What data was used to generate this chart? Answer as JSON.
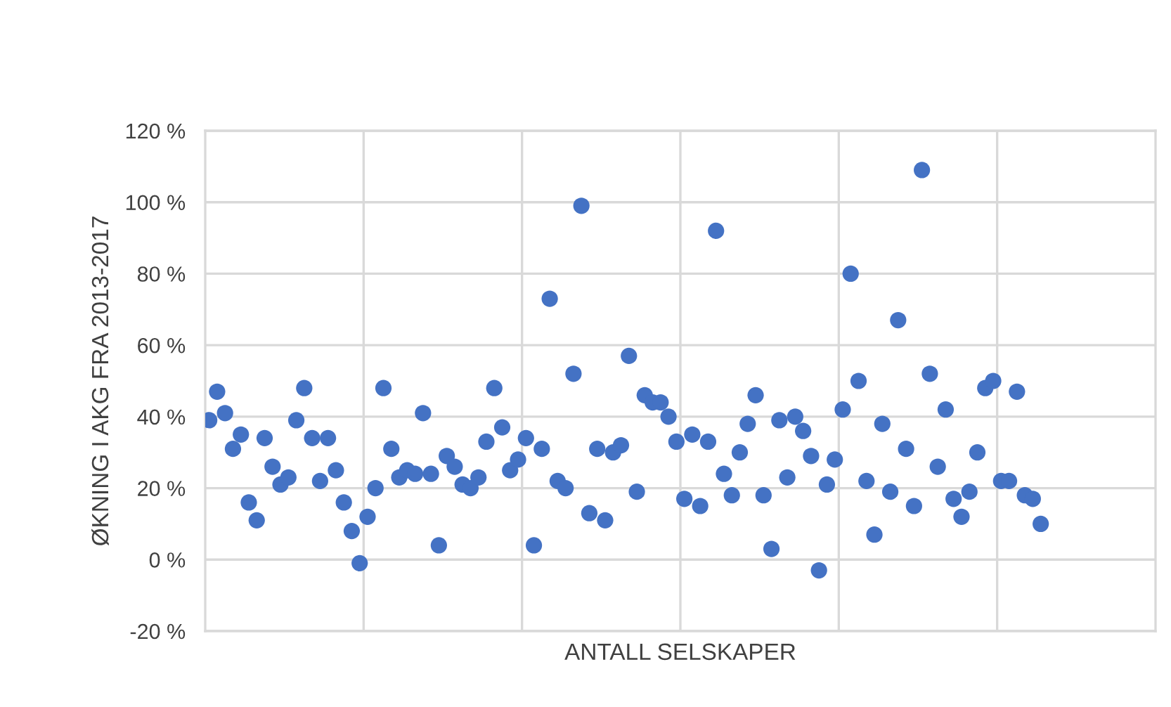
{
  "chart_data": {
    "type": "scatter",
    "xlabel": "ANTALL SELSKAPER",
    "ylabel": "ØKNING I AKG FRA 2013-2017",
    "categories": [
      null,
      null,
      null,
      null,
      null,
      null,
      null,
      null,
      null,
      null,
      null,
      null,
      null,
      null,
      null,
      null,
      null,
      null,
      null,
      null,
      null,
      null,
      null,
      null,
      null,
      null,
      null,
      null,
      null,
      null,
      null,
      null,
      null,
      null,
      null,
      null,
      null,
      null,
      null,
      null,
      null,
      null,
      null,
      null,
      null,
      null,
      null,
      null,
      null,
      null,
      null,
      null,
      null,
      null,
      null,
      null,
      null,
      null,
      null,
      null,
      null,
      null,
      null,
      null,
      null,
      null,
      null,
      null,
      null,
      null,
      null,
      null,
      null,
      null,
      null,
      null,
      null,
      null,
      null,
      null,
      null,
      null,
      null,
      null,
      null,
      null,
      null,
      null,
      null,
      null,
      null,
      null,
      null,
      null,
      null,
      null,
      null,
      null,
      null,
      null,
      null,
      null,
      null,
      null,
      null,
      null,
      null,
      null,
      null,
      null,
      null,
      null,
      null,
      null,
      null,
      null,
      null,
      null,
      null,
      null
    ],
    "series": [
      {
        "color": "#4472c4",
        "values": [
          39,
          47,
          41,
          31,
          35,
          16,
          11,
          34,
          26,
          21,
          23,
          39,
          48,
          34,
          22,
          34,
          25,
          16,
          8,
          -1,
          12,
          20,
          48,
          31,
          23,
          25,
          24,
          41,
          24,
          4,
          29,
          26,
          21,
          20,
          23,
          33,
          48,
          37,
          25,
          28,
          34,
          4,
          31,
          73,
          22,
          20,
          52,
          99,
          13,
          31,
          11,
          30,
          32,
          57,
          19,
          46,
          44,
          44,
          40,
          33,
          17,
          35,
          15,
          33,
          92,
          24,
          18,
          30,
          38,
          46,
          18,
          3,
          39,
          23,
          40,
          36,
          29,
          -3,
          21,
          28,
          42,
          80,
          50,
          22,
          7,
          38,
          19,
          67,
          31,
          15,
          109,
          52,
          26,
          42,
          17,
          12,
          19,
          30,
          48,
          50,
          22,
          22,
          47,
          18,
          17,
          10,
          null,
          null,
          null,
          null,
          null,
          null,
          null,
          null,
          null,
          null,
          null,
          null,
          null,
          null
        ]
      }
    ],
    "ylim": [
      -20,
      120
    ],
    "yticks": [
      {
        "value": -20,
        "label": "-20 %"
      },
      {
        "value": 0,
        "label": "0 %"
      },
      {
        "value": 20,
        "label": "20 %"
      },
      {
        "value": 40,
        "label": "40 %"
      },
      {
        "value": 60,
        "label": "60 %"
      },
      {
        "value": 80,
        "label": "80 %"
      },
      {
        "value": 100,
        "label": "100 %"
      },
      {
        "value": 120,
        "label": "120 %"
      }
    ],
    "tick_labels": "y",
    "grid": true,
    "marker": "circle"
  }
}
